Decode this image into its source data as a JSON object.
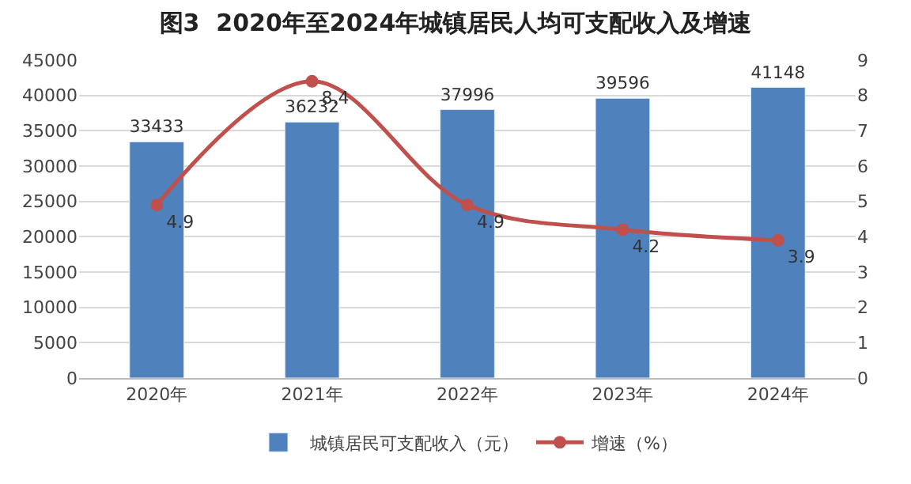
{
  "chart_data": {
    "type": "bar",
    "title": "图3  2020年至2024年城镇居民人均可支配收入及增速",
    "categories": [
      "2020年",
      "2021年",
      "2022年",
      "2023年",
      "2024年"
    ],
    "series": [
      {
        "name": "城镇居民可支配收入（元）",
        "color": "#4f81bd",
        "values": [
          33433,
          36232,
          37996,
          39596,
          41148
        ]
      },
      {
        "name": "增速（%）",
        "type": "line",
        "axis": "y2",
        "color": "#c0504d",
        "marker": "circle",
        "values": [
          4.9,
          8.4,
          4.9,
          4.2,
          3.9
        ]
      }
    ],
    "ylim": [
      0,
      45000
    ],
    "yticks": [
      0,
      5000,
      10000,
      15000,
      20000,
      25000,
      30000,
      35000,
      40000,
      45000
    ],
    "y2lim": [
      0,
      9
    ],
    "y2ticks": [
      0,
      1,
      2,
      3,
      4,
      5,
      6,
      7,
      8,
      9
    ],
    "grid": "y",
    "legend": "bottom",
    "data_labels": true
  }
}
